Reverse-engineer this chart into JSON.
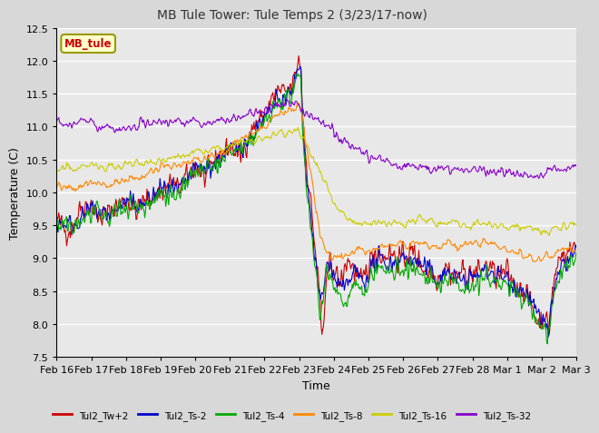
{
  "title": "MB Tule Tower: Tule Temps 2 (3/23/17-now)",
  "xlabel": "Time",
  "ylabel": "Temperature (C)",
  "ylim": [
    7.5,
    12.5
  ],
  "yticks": [
    7.5,
    8.0,
    8.5,
    9.0,
    9.5,
    10.0,
    10.5,
    11.0,
    11.5,
    12.0,
    12.5
  ],
  "bg_color": "#d8d8d8",
  "plot_bg_color": "#e8e8e8",
  "series": [
    {
      "label": "Tul2_Tw+2",
      "color": "#cc0000"
    },
    {
      "label": "Tul2_Ts-2",
      "color": "#0000cc"
    },
    {
      "label": "Tul2_Ts-4",
      "color": "#00aa00"
    },
    {
      "label": "Tul2_Ts-8",
      "color": "#ff8800"
    },
    {
      "label": "Tul2_Ts-16",
      "color": "#cccc00"
    },
    {
      "label": "Tul2_Ts-32",
      "color": "#8800cc"
    }
  ],
  "xtick_labels": [
    "Feb 16",
    "Feb 17",
    "Feb 18",
    "Feb 19",
    "Feb 20",
    "Feb 21",
    "Feb 22",
    "Feb 23",
    "Feb 24",
    "Feb 25",
    "Feb 26",
    "Feb 27",
    "Feb 28",
    "Mar 1",
    "Mar 2",
    "Mar 3"
  ],
  "inset_label": "MB_tule",
  "inset_color": "#cc0000",
  "inset_bg": "#ffffcc",
  "inset_edge": "#999900"
}
